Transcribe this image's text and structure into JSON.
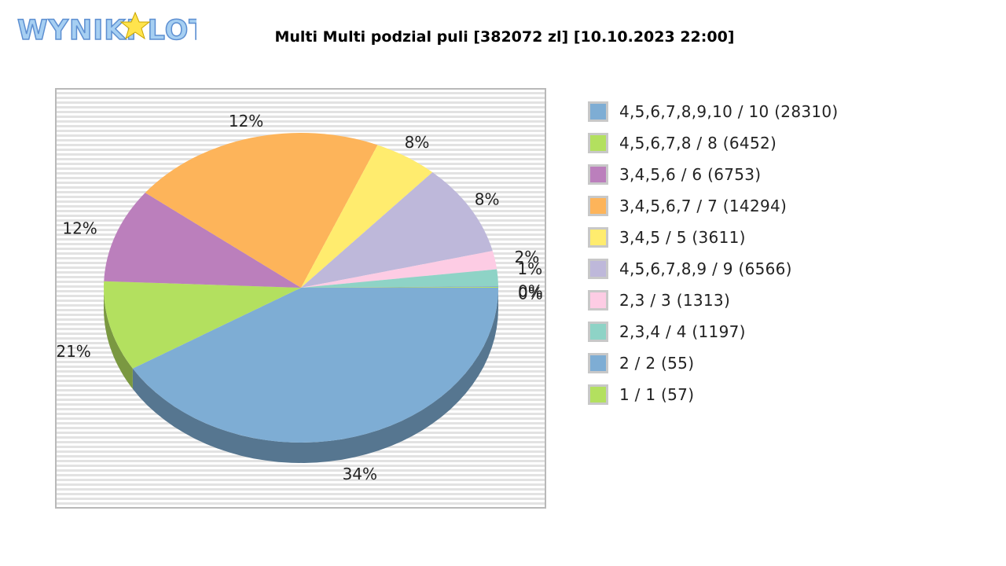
{
  "logo": {
    "text": "WYNIKI LOTTO"
  },
  "chart_data": {
    "type": "pie",
    "title": "Multi Multi podzial puli [382072 zl] [10.10.2023 22:00]",
    "legend_position": "right",
    "grid": true,
    "slices": [
      {
        "label": "4,5,6,7,8,9,10 / 10 (28310)",
        "value": 28310,
        "percent_label": "34%",
        "color": "#7eadd4"
      },
      {
        "label": "4,5,6,7,8 / 8 (6452)",
        "value": 6452,
        "percent_label": "21%",
        "color": "#b3e05f"
      },
      {
        "label": "3,4,5,6 / 6 (6753)",
        "value": 6753,
        "percent_label": "12%",
        "color": "#bb7fbc"
      },
      {
        "label": "3,4,5,6,7 / 7 (14294)",
        "value": 14294,
        "percent_label": "12%",
        "color": "#fdb45a"
      },
      {
        "label": "3,4,5 / 5 (3611)",
        "value": 3611,
        "percent_label": "8%",
        "color": "#ffec6e"
      },
      {
        "label": "4,5,6,7,8,9 / 9 (6566)",
        "value": 6566,
        "percent_label": "8%",
        "color": "#beb8da"
      },
      {
        "label": "2,3 / 3 (1313)",
        "value": 1313,
        "percent_label": "2%",
        "color": "#fdcce4"
      },
      {
        "label": "2,3,4 / 4 (1197)",
        "value": 1197,
        "percent_label": "1%",
        "color": "#8ed3c6"
      },
      {
        "label": "2 / 2 (55)",
        "value": 55,
        "percent_label": "0%",
        "color": "#7eadd4"
      },
      {
        "label": "1 / 1 (57)",
        "value": 57,
        "percent_label": "0%",
        "color": "#b3e05f"
      }
    ]
  }
}
